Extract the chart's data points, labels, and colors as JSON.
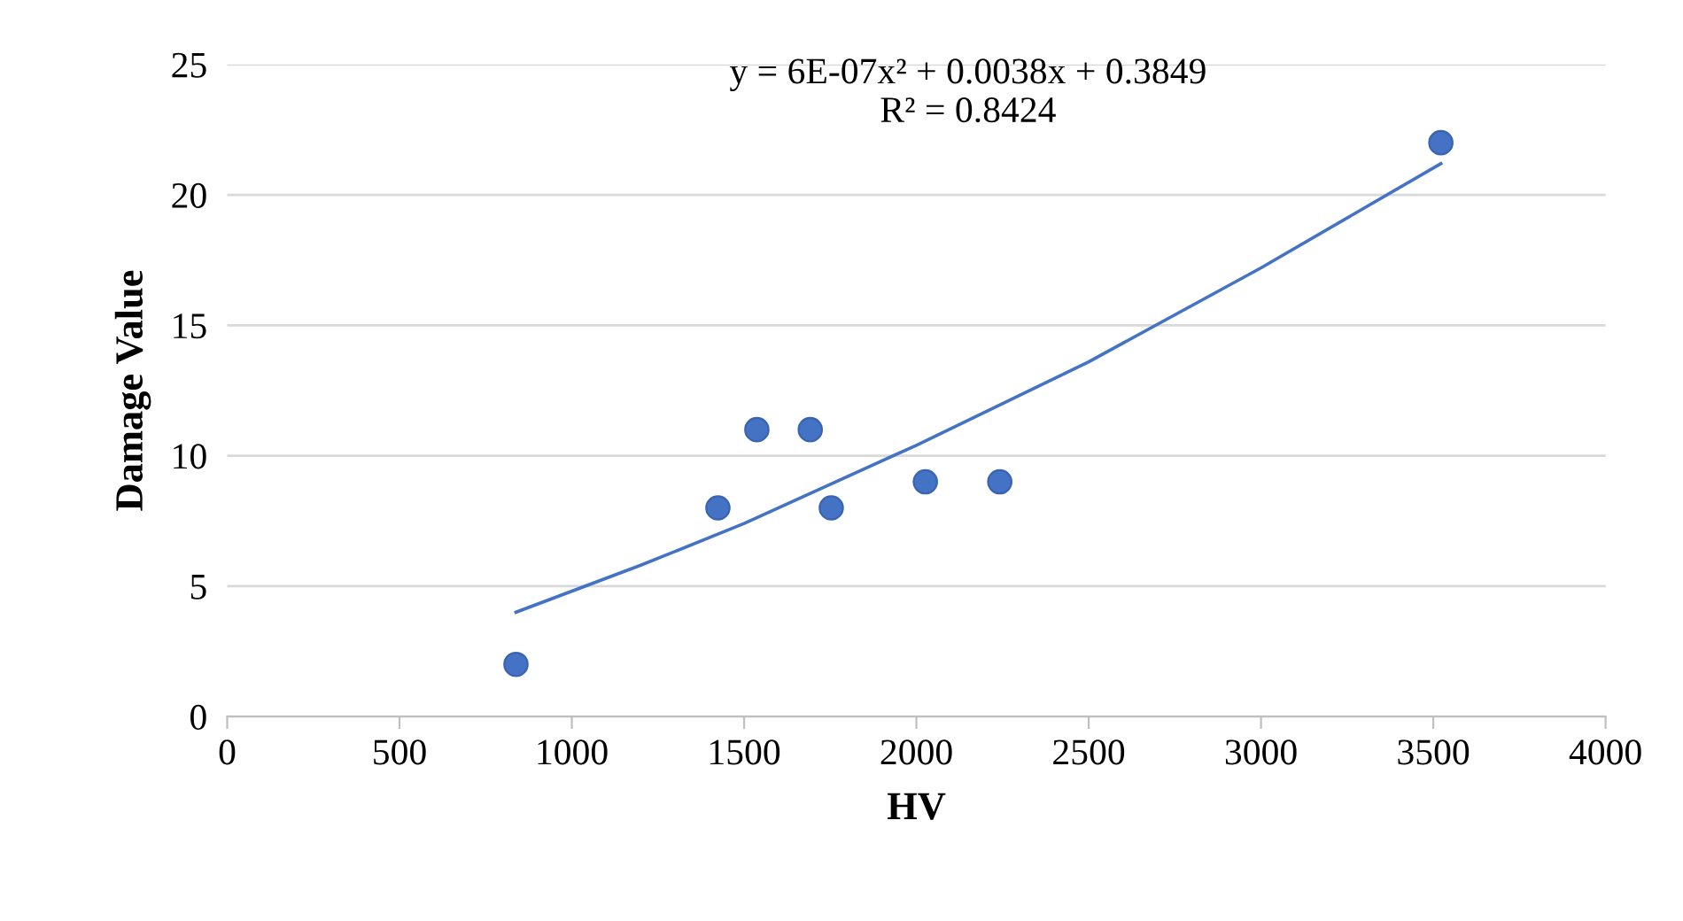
{
  "chart_data": {
    "type": "scatter",
    "xlabel": "HV",
    "ylabel": "Damage Value",
    "series": [
      {
        "color": "#4472c4",
        "marker": "circle",
        "x": [
          838,
          1424,
          1537,
          1692,
          1753,
          2026,
          2242,
          3522
        ],
        "values": [
          2,
          8,
          11,
          11,
          8,
          9,
          9,
          22
        ]
      },
      {
        "type": "line",
        "color": "#4472c4",
        "marker": "none",
        "x": [
          838,
          1200,
          1500,
          2000,
          2500,
          3000,
          3522
        ],
        "values": [
          4.0,
          5.8,
          7.4,
          10.4,
          13.6,
          17.2,
          21.2
        ]
      }
    ],
    "annotations": [
      "y = 6E-07x² + 0.0038x + 0.3849\nR² = 0.8424"
    ],
    "xlim": [
      0,
      4000
    ],
    "xticks": [
      0,
      500,
      1000,
      1500,
      2000,
      2500,
      3000,
      3500,
      4000
    ],
    "ylim": [
      0,
      25
    ],
    "yticks": [
      0,
      5,
      10,
      15,
      20,
      25
    ],
    "grid": "y"
  }
}
